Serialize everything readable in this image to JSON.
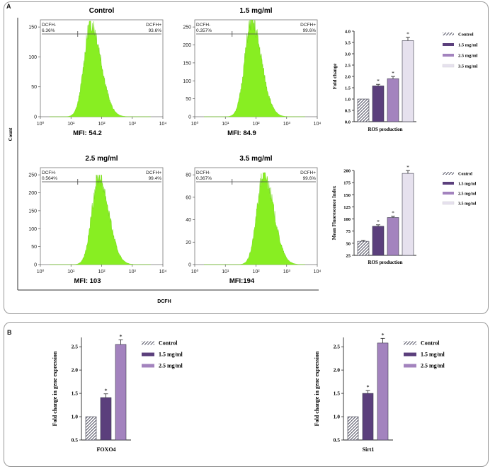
{
  "panels": {
    "a": "A",
    "b": "B"
  },
  "flow": {
    "ylabel": "Count",
    "xlabel": "DCFH",
    "x_ticks": [
      "10⁰",
      "10¹",
      "10²",
      "10³",
      "10⁴"
    ],
    "plots": [
      {
        "title": "Control",
        "ymax": 150,
        "yticks": [
          0,
          50,
          100,
          150
        ],
        "gate_left_label": "DCFH-",
        "gate_left_pct": "6.36%",
        "gate_right_label": "DCFH+",
        "gate_right_pct": "93.6%",
        "mfi": "MFI: 54.2",
        "peak_log": 1.65,
        "peak_count": 160
      },
      {
        "title": "1.5 mg/ml",
        "ymax": 250,
        "yticks": [
          0,
          50,
          100,
          150,
          200,
          250
        ],
        "gate_left_label": "DCFH-",
        "gate_left_pct": "0.357%",
        "gate_right_label": "DCFH+",
        "gate_right_pct": "99.6%",
        "mfi": "MFI: 84.9",
        "peak_log": 1.85,
        "peak_count": 270
      },
      {
        "title": "2.5 mg/ml",
        "ymax": 250,
        "yticks": [
          0,
          50,
          100,
          150,
          200,
          250
        ],
        "gate_left_label": "DCFH-",
        "gate_left_pct": "0.564%",
        "gate_right_label": "DCFH+",
        "gate_right_pct": "99.4%",
        "mfi": "MFI: 103",
        "peak_log": 1.9,
        "peak_count": 250
      },
      {
        "title": "3.5 mg/ml",
        "ymax": 80,
        "yticks": [
          0,
          20,
          40,
          60,
          80
        ],
        "gate_left_label": "DCFH-",
        "gate_left_pct": "0.367%",
        "gate_right_label": "DCFH+",
        "gate_right_pct": "99.6%",
        "mfi": "MFI:194",
        "peak_log": 2.25,
        "peak_count": 82
      }
    ]
  },
  "legend_entries": [
    "Control",
    "1.5 mg/ml",
    "2.5 mg/ml",
    "3.5 mg/ml"
  ],
  "colors": {
    "control": "#5b5b6b",
    "c15": "#5b3f7c",
    "c25": "#a383be",
    "c35": "#e6e1ee",
    "flow_fill": "#88ee22"
  },
  "chart_data": [
    {
      "type": "bar",
      "title": "ROS production (fold change)",
      "xlabel": "ROS production",
      "ylabel": "Fold change",
      "categories": [
        "Control",
        "1.5 mg/ml",
        "2.5 mg/ml",
        "3.5 mg/ml"
      ],
      "values": [
        1.0,
        1.58,
        1.9,
        3.58
      ],
      "errors": [
        0,
        0.07,
        0.1,
        0.15
      ],
      "significant": [
        false,
        true,
        true,
        true
      ],
      "ylim": [
        0,
        4.0
      ],
      "yticks": [
        "0.0",
        "0.5",
        "1.0",
        "1.5",
        "2.0",
        "2.5",
        "3.0",
        "3.5",
        "4.0"
      ]
    },
    {
      "type": "bar",
      "title": "ROS production (MFI)",
      "xlabel": "ROS production",
      "ylabel": "Mean Fluorescence Index",
      "categories": [
        "Control",
        "1.5 mg/ml",
        "2.5 mg/ml",
        "3.5 mg/ml"
      ],
      "values": [
        54,
        85,
        103,
        194
      ],
      "errors": [
        2,
        3,
        3,
        6
      ],
      "significant": [
        false,
        true,
        true,
        true
      ],
      "ylim": [
        25,
        200
      ],
      "yticks": [
        "25",
        "50",
        "75",
        "100",
        "125",
        "150",
        "175",
        "200"
      ]
    },
    {
      "type": "bar",
      "title": "FOXO4",
      "xlabel": "FOXO4",
      "ylabel": "Fold change in  gene expression",
      "categories": [
        "Control",
        "1.5 mg/ml",
        "2.5 mg/ml"
      ],
      "values": [
        1.0,
        1.41,
        2.55
      ],
      "errors": [
        0,
        0.08,
        0.1
      ],
      "significant": [
        false,
        true,
        true
      ],
      "ylim": [
        0.5,
        2.7
      ],
      "yticks": [
        "0.5",
        "1.0",
        "1.5",
        "2.0",
        "2.5"
      ]
    },
    {
      "type": "bar",
      "title": "Sirt1",
      "xlabel": "Sirt1",
      "ylabel": "Fold change in  gene expression",
      "categories": [
        "Control",
        "1.5 mg/ml",
        "2.5 mg/ml"
      ],
      "values": [
        1.0,
        1.5,
        2.58
      ],
      "errors": [
        0,
        0.06,
        0.1
      ],
      "significant": [
        false,
        true,
        true
      ],
      "ylim": [
        0.5,
        2.7
      ],
      "yticks": [
        "0.5",
        "1.0",
        "1.5",
        "2.0",
        "2.5"
      ]
    }
  ]
}
